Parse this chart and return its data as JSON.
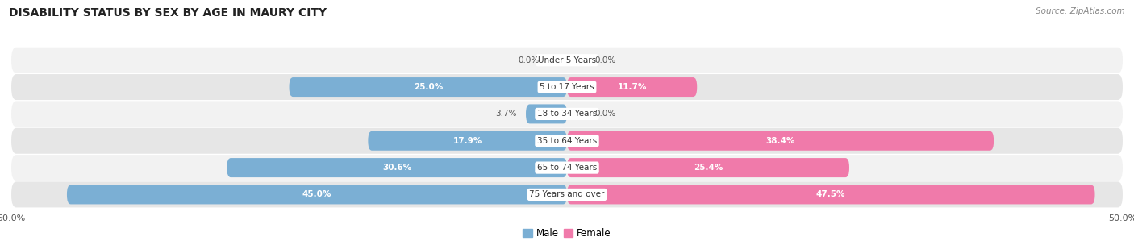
{
  "title": "DISABILITY STATUS BY SEX BY AGE IN MAURY CITY",
  "source": "Source: ZipAtlas.com",
  "categories": [
    "Under 5 Years",
    "5 to 17 Years",
    "18 to 34 Years",
    "35 to 64 Years",
    "65 to 74 Years",
    "75 Years and over"
  ],
  "male_values": [
    0.0,
    25.0,
    3.7,
    17.9,
    30.6,
    45.0
  ],
  "female_values": [
    0.0,
    11.7,
    0.0,
    38.4,
    25.4,
    47.5
  ],
  "male_color": "#7bafd4",
  "female_color": "#f07aaa",
  "row_bg_light": "#f2f2f2",
  "row_bg_dark": "#e6e6e6",
  "xlim": 50.0,
  "bar_height": 0.72,
  "legend_male": "Male",
  "legend_female": "Female",
  "figsize": [
    14.06,
    3.04
  ],
  "dpi": 100,
  "inside_label_threshold": 8.0
}
